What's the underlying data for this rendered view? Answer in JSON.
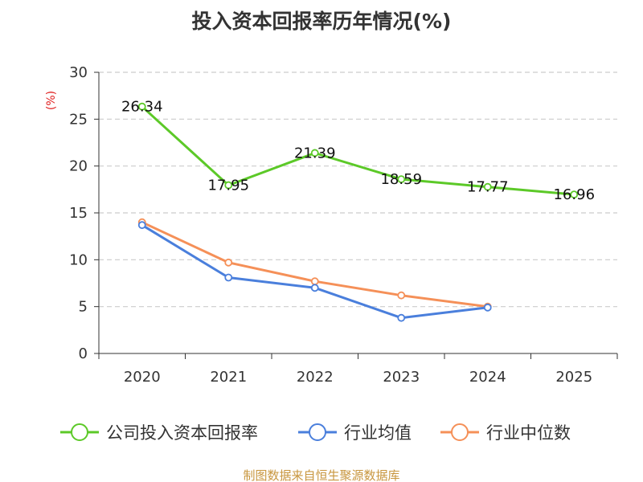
{
  "chart_data": {
    "type": "line",
    "title": "投入资本回报率历年情况(%)",
    "unit_label": "(%)",
    "categories": [
      "2020",
      "2021",
      "2022",
      "2023",
      "2024",
      "2025"
    ],
    "y_ticks": [
      "0",
      "5",
      "10",
      "15",
      "20",
      "25",
      "30"
    ],
    "ylim": [
      0,
      30
    ],
    "grid": true,
    "legend_position": "bottom",
    "series": [
      {
        "name": "公司投入资本回报率",
        "color": "#5cc928",
        "values": [
          26.34,
          17.95,
          21.39,
          18.59,
          17.77,
          16.96
        ],
        "labels": [
          "26.34",
          "17.95",
          "21.39",
          "18.59",
          "17.77",
          "16.96"
        ]
      },
      {
        "name": "行业均值",
        "color": "#4a7fdc",
        "values": [
          13.7,
          8.1,
          7.0,
          3.8,
          4.9,
          null
        ]
      },
      {
        "name": "行业中位数",
        "color": "#f59058",
        "values": [
          14.0,
          9.7,
          7.7,
          6.2,
          5.0,
          null
        ]
      }
    ],
    "source": "制图数据来自恒生聚源数据库"
  }
}
